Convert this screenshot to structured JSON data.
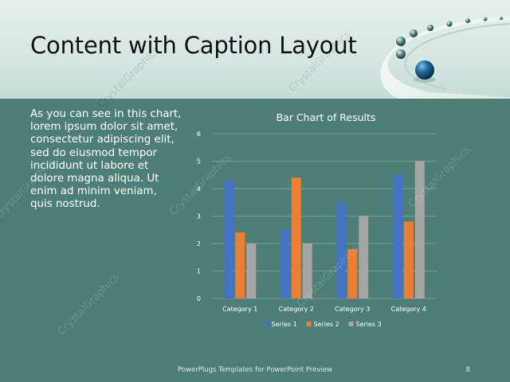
{
  "slide": {
    "title": "Content with Caption Layout",
    "caption": "As you can see in this chart, lorem ipsum dolor sit amet, consectetur adipiscing elit, sed do eiusmod tempor incididunt ut labore et dolore magna aliqua. Ut enim ad minim veniam, quis nostrud.",
    "footer": "PowerPlugs Templates for PowerPoint Preview",
    "page_number": "8",
    "watermark": "CrystalGraphics"
  },
  "colors": {
    "header_bg": "#d4e5e2",
    "body_bg": "#4d7f78",
    "series1": "#4472c4",
    "series2": "#ed7d31",
    "series3": "#a5a5a5",
    "accent_ball": "#1d5f86"
  },
  "chart_data": {
    "type": "bar",
    "title": "Bar Chart of Results",
    "categories": [
      "Category 1",
      "Category 2",
      "Category 3",
      "Category 4"
    ],
    "series": [
      {
        "name": "Series 1",
        "values": [
          4.3,
          2.5,
          3.5,
          4.5
        ]
      },
      {
        "name": "Series 2",
        "values": [
          2.4,
          4.4,
          1.8,
          2.8
        ]
      },
      {
        "name": "Series 3",
        "values": [
          2,
          2,
          3,
          5
        ]
      }
    ],
    "ylim": [
      0,
      6
    ],
    "yticks": [
      "0",
      "1",
      "2",
      "3",
      "4",
      "5",
      "6"
    ],
    "grid": true,
    "legend": "bottom"
  }
}
